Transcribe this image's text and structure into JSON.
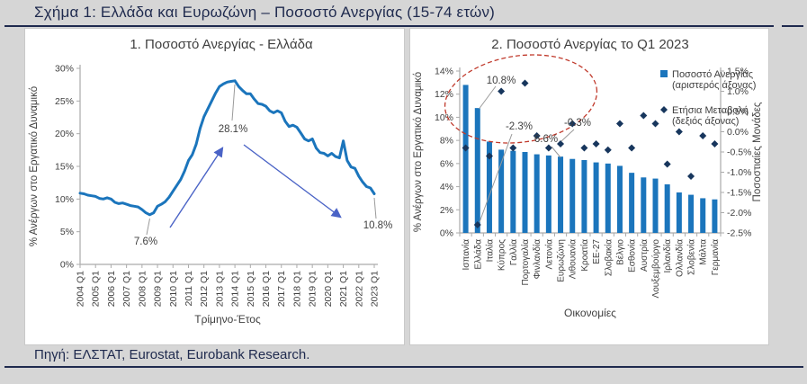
{
  "page": {
    "title": "Σχήμα 1: Ελλάδα και Ευρωζώνη – Ποσοστό Ανεργίας (15-74 ετών)",
    "footer": "Πηγή: ΕΛΣΤΑΤ, Eurostat, Eurobank Research."
  },
  "colors": {
    "line_blue": "#1B75BC",
    "bar_blue": "#1B75BC",
    "diamond_navy": "#17365D",
    "arrow_blue": "#4A63C6",
    "ellipse_red": "#C0392B",
    "leader_gray": "#9A9A9A",
    "axis_gray": "#ABABAB",
    "text_dark": "#3F3F3F",
    "heading_navy": "#1F2A4E",
    "page_bg": "#D6D6D6",
    "panel_bg": "#FFFFFF"
  },
  "chart_data": [
    {
      "type": "line",
      "title": "1. Ποσοστό Ανεργίας - Ελλάδα",
      "xlabel": "Τρίμηνο-Έτος",
      "ylabel": "% Ανέργων στο Εργατικό Δυναμικό",
      "ylim": [
        0,
        30
      ],
      "ytick_labels": [
        "0%",
        "5%",
        "10%",
        "15%",
        "20%",
        "25%",
        "30%"
      ],
      "xtick_labels": [
        "2004 Q1",
        "2005 Q1",
        "2006 Q1",
        "2007 Q1",
        "2008 Q1",
        "2009 Q1",
        "2010 Q1",
        "2011 Q1",
        "2012 Q1",
        "2013 Q1",
        "2014 Q1",
        "2015 Q1",
        "2016 Q1",
        "2017 Q1",
        "2018 Q1",
        "2019 Q1",
        "2020 Q1",
        "2021 Q1",
        "2022 Q1",
        "2023 Q1"
      ],
      "points_per_xtick": 4,
      "grid": false,
      "legend": "none",
      "series": [
        {
          "name": "Ποσοστό Ανεργίας Ελλάδα",
          "values": [
            10.9,
            10.8,
            10.6,
            10.5,
            10.4,
            10.1,
            10.0,
            10.2,
            10.0,
            9.5,
            9.3,
            9.4,
            9.2,
            9.0,
            8.9,
            8.8,
            8.4,
            7.9,
            7.6,
            7.9,
            8.9,
            9.2,
            9.6,
            10.3,
            11.2,
            12.1,
            13.0,
            14.3,
            15.9,
            16.8,
            18.4,
            20.8,
            22.6,
            23.8,
            25.0,
            26.2,
            27.2,
            27.6,
            27.9,
            28.0,
            28.1,
            27.2,
            26.6,
            26.1,
            26.1,
            25.3,
            24.6,
            24.5,
            24.2,
            23.5,
            23.2,
            23.5,
            23.2,
            21.9,
            21.1,
            21.3,
            21.0,
            20.1,
            19.2,
            18.9,
            19.2,
            17.8,
            17.1,
            17.0,
            16.6,
            17.0,
            16.5,
            16.3,
            18.9,
            15.9,
            14.9,
            14.7,
            13.5,
            12.6,
            11.9,
            11.7,
            10.8
          ]
        }
      ],
      "annotations": [
        {
          "text": "7.6%",
          "x": "2008 Q3",
          "value": 7.6
        },
        {
          "text": "28.1%",
          "x": "2014 Q1",
          "value": 28.1
        },
        {
          "text": "10.8%",
          "x": "2023 Q1",
          "value": 10.8
        }
      ]
    },
    {
      "type": "bar",
      "title": "2. Ποσοστό Ανεργίας το Q1 2023",
      "xlabel": "Οικονομίες",
      "ylabel_left": "% Ανέργων στο Εργατικό Δυναμικό",
      "ylabel_right": "Ποσοστιαίες Μονάδες",
      "ylim_left": [
        0,
        14
      ],
      "ylim_right": [
        -2.5,
        1.5
      ],
      "ytick_labels_left": [
        "0%",
        "2%",
        "4%",
        "6%",
        "8%",
        "10%",
        "12%",
        "14%"
      ],
      "ytick_labels_right": [
        "-2.5%",
        "-2.0%",
        "-1.5%",
        "-1.0%",
        "-0.5%",
        "0.0%",
        "0.5%",
        "1.0%",
        "1.5%"
      ],
      "categories": [
        "Ισπανία",
        "Ελλάδα",
        "Ιταλία",
        "Κύπρος",
        "Γαλλία",
        "Πορτογαλία",
        "Φινλανδία",
        "Λετονία",
        "Ευρωζώνη",
        "Λιθουανία",
        "Κροατία",
        "ΕΕ-27",
        "Σλοβακία",
        "Βέλγιο",
        "Εσθονία",
        "Αυστρία",
        "Λουξεμβούργο",
        "Ιρλανδία",
        "Ολλανδία",
        "Σλοβενία",
        "Μάλτα",
        "Γερμανία"
      ],
      "series": [
        {
          "name": "Ποσοστό Ανεργίας (αριστερός άξονας)",
          "type": "bar",
          "axis": "left",
          "values": [
            12.8,
            10.8,
            7.9,
            7.2,
            7.1,
            7.0,
            6.8,
            6.7,
            6.6,
            6.4,
            6.3,
            6.1,
            6.0,
            5.8,
            5.2,
            4.8,
            4.7,
            4.2,
            3.5,
            3.3,
            3.0,
            2.9
          ]
        },
        {
          "name": "Ετήσια Μεταβολή (δεξιός άξονας)",
          "type": "scatter",
          "marker": "diamond",
          "axis": "right",
          "values": [
            -0.4,
            -2.3,
            -0.6,
            1.0,
            -0.4,
            1.2,
            -0.1,
            -0.4,
            -0.3,
            0.2,
            -0.4,
            -0.3,
            -0.45,
            0.2,
            -0.4,
            0.4,
            0.2,
            -0.8,
            0.0,
            -1.1,
            -0.1,
            -0.3
          ]
        }
      ],
      "legend_position": "top-right",
      "annotations": [
        {
          "text": "10.8%",
          "target": "Ελλάδα",
          "series": "bar"
        },
        {
          "text": "-2.3%",
          "target": "Ελλάδα",
          "series": "scatter"
        },
        {
          "text": "6.6%",
          "target": "Ευρωζώνη",
          "series": "bar"
        },
        {
          "text": "-0.3%",
          "target": "Ευρωζώνη",
          "series": "scatter"
        }
      ],
      "highlight": "red dashed ellipse around Spain/Greece bars and annotation labels"
    }
  ]
}
